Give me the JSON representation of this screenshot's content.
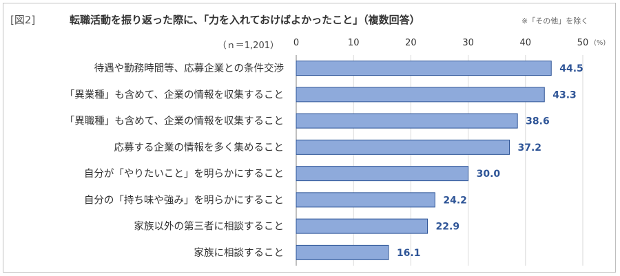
{
  "header": {
    "figure_label": "[図2]",
    "title": "転職活動を振り返った際に、「力を入れておけばよかったこと」（複数回答）",
    "note": "※「その他」を除く"
  },
  "chart_data": {
    "type": "bar",
    "orientation": "horizontal",
    "sample_label": "（ｎ＝1,201）",
    "unit": "(%)",
    "categories": [
      "待遇や勤務時間等、応募企業との条件交渉",
      "「異業種」も含めて、企業の情報を収集すること",
      "「異職種」も含めて、企業の情報を収集すること",
      "応募する企業の情報を多く集めること",
      "自分が「やりたいこと」を明らかにすること",
      "自分の「持ち味や強み」を明らかにすること",
      "家族以外の第三者に相談すること",
      "家族に相談すること"
    ],
    "values": [
      44.5,
      43.3,
      38.6,
      37.2,
      30.0,
      24.2,
      22.9,
      16.1
    ],
    "value_labels": [
      "44.5",
      "43.3",
      "38.6",
      "37.2",
      "30.0",
      "24.2",
      "22.9",
      "16.1"
    ],
    "xlim": [
      0,
      50
    ],
    "xticks": [
      0,
      10,
      20,
      30,
      40,
      50
    ],
    "grid": true,
    "colors": {
      "bar_fill": "#8eaadb",
      "bar_stroke": "#2f5597",
      "label": "#2f5597",
      "grid": "#d9d9d9"
    }
  }
}
